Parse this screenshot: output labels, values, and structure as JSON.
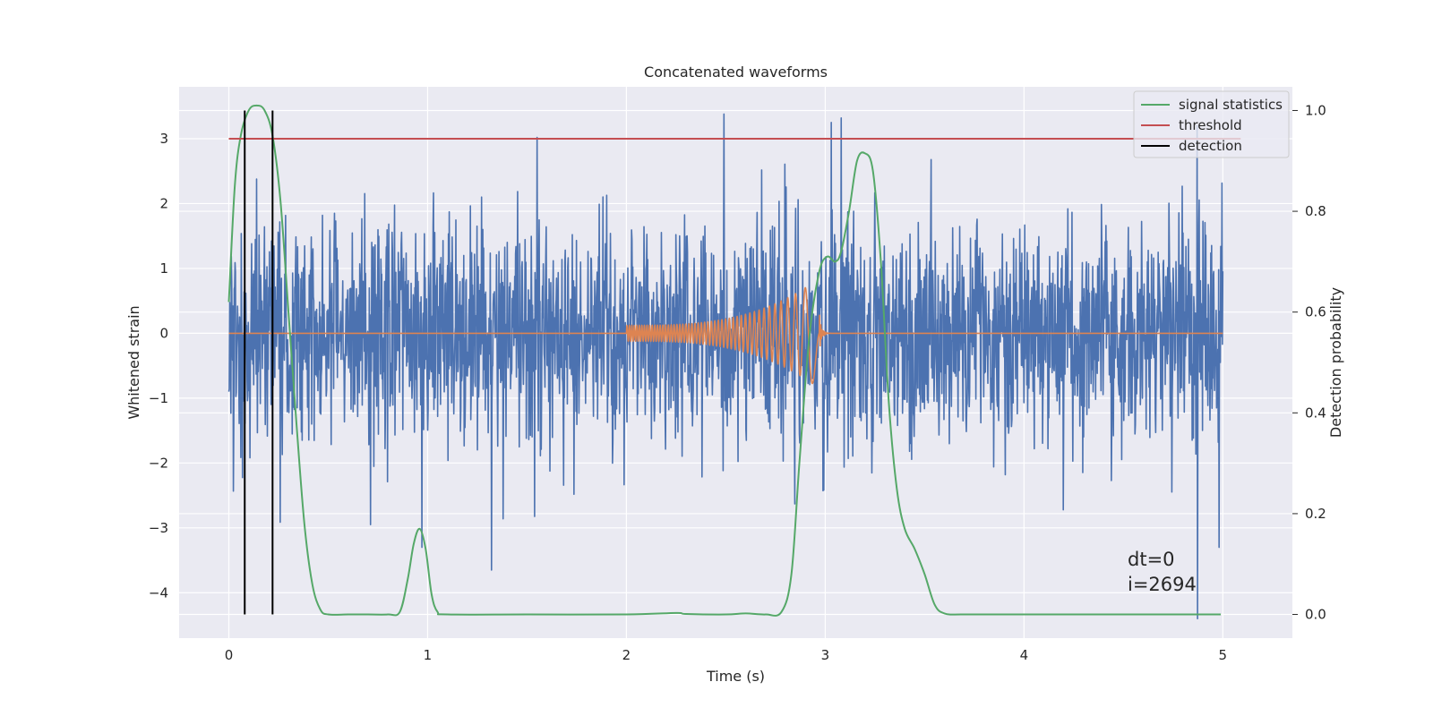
{
  "chart_data": {
    "type": "line",
    "title": "Concatenated waveforms",
    "xlabel": "Time (s)",
    "ylabel": "Whitened strain",
    "ylabel_right": "Detection probability",
    "xlim": [
      -0.25,
      5.35
    ],
    "ylim": [
      -4.7,
      3.8
    ],
    "ylim_right": [
      -0.047,
      1.047
    ],
    "xticks": [
      0,
      1,
      2,
      3,
      4,
      5
    ],
    "yticks": [
      -4,
      -3,
      -2,
      -1,
      0,
      1,
      2,
      3
    ],
    "yticks_right": [
      0.0,
      0.2,
      0.4,
      0.6,
      0.8,
      1.0
    ],
    "xtick_labels": [
      "0",
      "1",
      "2",
      "3",
      "4",
      "5"
    ],
    "ytick_labels": [
      "−4",
      "−3",
      "−2",
      "−1",
      "0",
      "1",
      "2",
      "3"
    ],
    "ytick_right_labels": [
      "0.0",
      "0.2",
      "0.4",
      "0.6",
      "0.8",
      "1.0"
    ],
    "grid": true,
    "legend_position": "top-right",
    "colors": {
      "background": "#eaeaf2",
      "grid": "#ffffff",
      "noise": "#4c72b0",
      "chirp": "#dd8452",
      "signal_statistics": "#55a868",
      "threshold": "#c44e52",
      "detection": "#000000"
    },
    "series": [
      {
        "name": "",
        "axis": "left",
        "kind": "noise",
        "x_range": [
          0,
          5
        ],
        "envelope_sigma": 0.85,
        "peaks": [
          {
            "x": 1.55,
            "y": 3.02
          },
          {
            "x": 2.49,
            "y": 3.38
          },
          {
            "x": 3.03,
            "y": 3.25
          },
          {
            "x": 3.08,
            "y": 3.32
          },
          {
            "x": 4.87,
            "y": 3.2
          },
          {
            "x": 4.87,
            "y": -4.4
          },
          {
            "x": 1.32,
            "y": -3.65
          },
          {
            "x": 4.98,
            "y": -3.3
          },
          {
            "x": 0.97,
            "y": -3.3
          },
          {
            "x": 0.71,
            "y": -2.95
          }
        ]
      },
      {
        "name": "",
        "axis": "left",
        "kind": "chirp",
        "t_start": 2.0,
        "t_merger": 2.97,
        "cycles": 50,
        "amp_start": 0.12,
        "amp_end": 0.85
      },
      {
        "name": "signal statistics",
        "axis": "right",
        "x": [
          0.0,
          0.03,
          0.06,
          0.1,
          0.14,
          0.18,
          0.22,
          0.26,
          0.3,
          0.34,
          0.38,
          0.42,
          0.46,
          0.5,
          0.6,
          0.7,
          0.8,
          0.86,
          0.9,
          0.93,
          0.96,
          0.99,
          1.02,
          1.05,
          1.1,
          1.5,
          2.0,
          2.25,
          2.3,
          2.5,
          2.6,
          2.7,
          2.78,
          2.83,
          2.87,
          2.92,
          2.97,
          3.01,
          3.05,
          3.08,
          3.12,
          3.16,
          3.2,
          3.24,
          3.28,
          3.32,
          3.36,
          3.4,
          3.45,
          3.5,
          3.55,
          3.6,
          3.7,
          4.0,
          4.5,
          4.99
        ],
        "y": [
          0.62,
          0.85,
          0.95,
          1.0,
          1.01,
          1.0,
          0.95,
          0.82,
          0.6,
          0.38,
          0.18,
          0.06,
          0.01,
          0.0,
          0.0,
          0.0,
          0.0,
          0.005,
          0.07,
          0.14,
          0.17,
          0.13,
          0.04,
          0.005,
          0.0,
          0.0,
          0.0,
          0.003,
          0.001,
          0.0,
          0.002,
          0.0,
          0.005,
          0.08,
          0.3,
          0.55,
          0.68,
          0.71,
          0.7,
          0.72,
          0.8,
          0.9,
          0.915,
          0.88,
          0.7,
          0.42,
          0.25,
          0.17,
          0.13,
          0.08,
          0.02,
          0.002,
          0.0,
          0.0,
          0.0,
          0.0
        ]
      },
      {
        "name": "threshold",
        "axis": "left",
        "x": [
          0,
          5
        ],
        "y": [
          3.0,
          3.0
        ]
      },
      {
        "name": "detection",
        "axis": "right",
        "x_positions": [
          0.08,
          0.22
        ],
        "y_range": [
          0.0,
          1.0
        ]
      }
    ],
    "annotations": [
      "dt=0",
      "i=2694"
    ]
  }
}
